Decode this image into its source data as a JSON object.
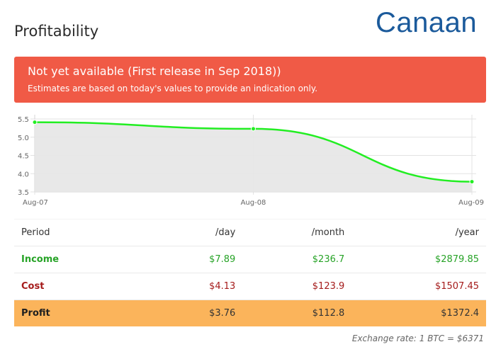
{
  "header": {
    "title": "Profitability",
    "brand": "Canaan"
  },
  "alert": {
    "title": "Not yet available (First release in Sep 2018))",
    "text": "Estimates are based on today's values to provide an indication only."
  },
  "chart_data": {
    "type": "line",
    "categories": [
      "Aug-07",
      "Aug-08",
      "Aug-09"
    ],
    "series": [
      {
        "values": [
          5.41,
          5.23,
          3.78
        ]
      }
    ],
    "yticks": [
      "5.5",
      "5.0",
      "4.5",
      "4.0",
      "3.5"
    ],
    "ylim": [
      3.5,
      5.5
    ],
    "grid": true,
    "fill": true,
    "line_color": "#22ee22",
    "fill_color": "#e5e5e5"
  },
  "table": {
    "headers": [
      "Period",
      "/day",
      "/month",
      "/year"
    ],
    "rows": [
      {
        "label": "Income",
        "day": "$7.89",
        "month": "$236.7",
        "year": "$2879.85"
      },
      {
        "label": "Cost",
        "day": "$4.13",
        "month": "$123.9",
        "year": "$1507.45"
      },
      {
        "label": "Profit",
        "day": "$3.76",
        "month": "$112.8",
        "year": "$1372.4"
      }
    ]
  },
  "footer": {
    "exchange_rate": "Exchange rate: 1 BTC = $6371"
  },
  "colors": {
    "alert_bg": "#f05a46",
    "brand": "#1b5a9b",
    "income": "#27a327",
    "cost": "#a51b1b",
    "profit_row_bg": "#fbb45b"
  }
}
